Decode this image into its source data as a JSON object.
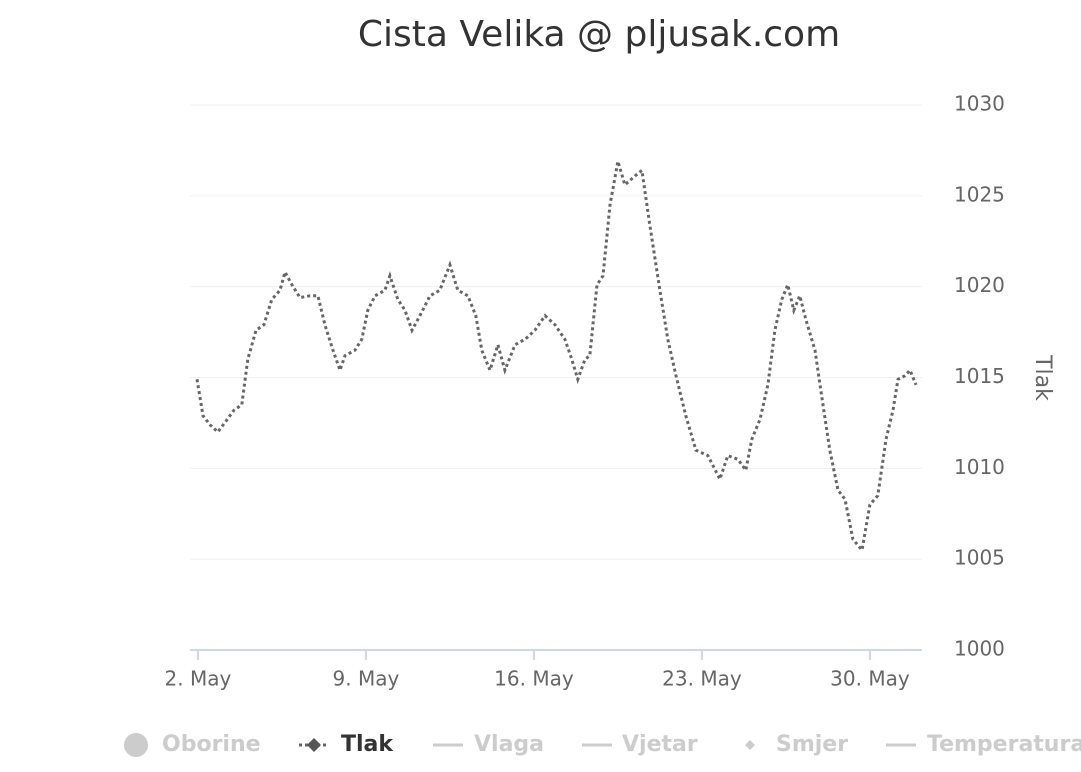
{
  "chart_data": {
    "type": "line",
    "title": "Cista Velika @ pljusak.com",
    "y_axis_title": "Tlak",
    "x": [
      1.96,
      2.21,
      2.5,
      2.83,
      3.17,
      3.5,
      3.83,
      4.08,
      4.42,
      4.75,
      5.08,
      5.42,
      5.63,
      5.92,
      6.25,
      6.67,
      7.0,
      7.29,
      7.63,
      7.92,
      8.13,
      8.54,
      8.83,
      9.08,
      9.38,
      9.79,
      10.0,
      10.33,
      10.63,
      10.92,
      11.25,
      11.67,
      12.08,
      12.5,
      12.83,
      13.25,
      13.58,
      13.83,
      14.17,
      14.5,
      14.79,
      15.21,
      15.63,
      16.04,
      16.46,
      16.88,
      17.29,
      17.58,
      17.83,
      18.13,
      18.33,
      18.63,
      18.88,
      19.17,
      19.5,
      19.79,
      20.21,
      20.5,
      20.83,
      21.25,
      21.58,
      21.92,
      22.33,
      22.75,
      23.25,
      23.75,
      24.08,
      24.5,
      24.83,
      25.08,
      25.42,
      25.75,
      26.04,
      26.33,
      26.58,
      26.83,
      27.08,
      27.33,
      27.71,
      27.92,
      28.33,
      28.67,
      28.96,
      29.29,
      29.67,
      30.0,
      30.33,
      30.67,
      30.96,
      31.17,
      31.46,
      31.67,
      31.92
    ],
    "series": [
      {
        "name": "Oborine",
        "visible": false,
        "symbol": "circle"
      },
      {
        "name": "Tlak",
        "visible": true,
        "symbol": "diamond-line",
        "color": "#666666",
        "values": [
          1014.9,
          1012.9,
          1012.4,
          1012.0,
          1012.6,
          1013.2,
          1013.5,
          1016.0,
          1017.6,
          1017.9,
          1019.3,
          1019.8,
          1020.8,
          1020.1,
          1019.4,
          1019.5,
          1019.5,
          1017.9,
          1016.5,
          1015.4,
          1016.2,
          1016.5,
          1017.1,
          1018.7,
          1019.5,
          1019.8,
          1020.6,
          1019.3,
          1018.7,
          1017.6,
          1018.4,
          1019.5,
          1019.8,
          1021.2,
          1019.8,
          1019.5,
          1018.4,
          1016.5,
          1015.4,
          1016.8,
          1015.4,
          1016.8,
          1017.1,
          1017.6,
          1018.4,
          1017.9,
          1017.1,
          1016.0,
          1014.9,
          1016.0,
          1016.2,
          1020.1,
          1020.6,
          1024.5,
          1026.9,
          1025.6,
          1026.1,
          1026.4,
          1023.4,
          1019.8,
          1017.1,
          1015.1,
          1012.9,
          1011.0,
          1010.7,
          1009.4,
          1010.7,
          1010.5,
          1009.9,
          1011.6,
          1012.7,
          1014.6,
          1017.6,
          1019.3,
          1020.1,
          1018.7,
          1019.5,
          1018.2,
          1016.5,
          1014.6,
          1011.0,
          1008.8,
          1008.3,
          1006.1,
          1005.5,
          1008.0,
          1008.5,
          1011.6,
          1013.2,
          1014.9,
          1015.1,
          1015.4,
          1014.6
        ]
      },
      {
        "name": "Vlaga",
        "visible": false,
        "symbol": "line"
      },
      {
        "name": "Vjetar",
        "visible": false,
        "symbol": "line"
      },
      {
        "name": "Smjer",
        "visible": false,
        "symbol": "diamond"
      },
      {
        "name": "Temperatura",
        "visible": false,
        "symbol": "line"
      }
    ],
    "xlim": [
      1.67,
      32.17
    ],
    "xticks": [
      {
        "value": 2,
        "label": "2. May"
      },
      {
        "value": 9,
        "label": "9. May"
      },
      {
        "value": 16,
        "label": "16. May"
      },
      {
        "value": 23,
        "label": "23. May"
      },
      {
        "value": 30,
        "label": "30. May"
      }
    ],
    "ylim": [
      1000,
      1030
    ],
    "yticks": [
      1000,
      1005,
      1010,
      1015,
      1020,
      1025,
      1030
    ],
    "y_axis_side": "right",
    "grid": true,
    "legend": "bottom"
  }
}
